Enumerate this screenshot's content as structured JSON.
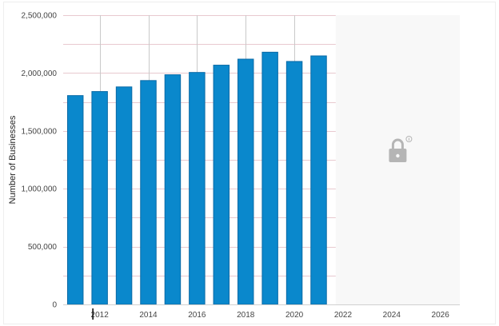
{
  "chart_data": {
    "type": "bar",
    "title": "",
    "xlabel": "",
    "ylabel": "Number of Businesses",
    "x": [
      2011,
      2012,
      2013,
      2014,
      2015,
      2016,
      2017,
      2018,
      2019,
      2020,
      2021
    ],
    "values": [
      1805000,
      1840000,
      1880000,
      1935000,
      1985000,
      2005000,
      2068000,
      2120000,
      2180000,
      2100000,
      2148000
    ],
    "xlim": [
      2010.5,
      2026.8
    ],
    "ylim": [
      0,
      2500000
    ],
    "y_ticks": [
      0,
      500000,
      1000000,
      1500000,
      2000000,
      2500000
    ],
    "y_tick_labels": [
      "0",
      "500,000",
      "1,000,000",
      "1,500,000",
      "2,000,000",
      "2,500,000"
    ],
    "x_ticks": [
      2012,
      2014,
      2016,
      2018,
      2020,
      2022,
      2024,
      2026
    ],
    "x_tick_labels": [
      "2012",
      "2014",
      "2016",
      "2018",
      "2020",
      "2022",
      "2024",
      "2026"
    ],
    "locked_region": {
      "from": 2021.7,
      "to": 2026.8
    },
    "grid": true,
    "colors": {
      "bar_fill": "#0a88cc",
      "bar_stroke": "#0a6aa6",
      "gridline": "#e8c9cf",
      "locked_bg": "#f8f8f8",
      "lock_icon": "#b5b5b5",
      "reference_line": "#c9c9c9"
    },
    "lock_icon": "lock-icon",
    "info_icon": "info-icon"
  }
}
